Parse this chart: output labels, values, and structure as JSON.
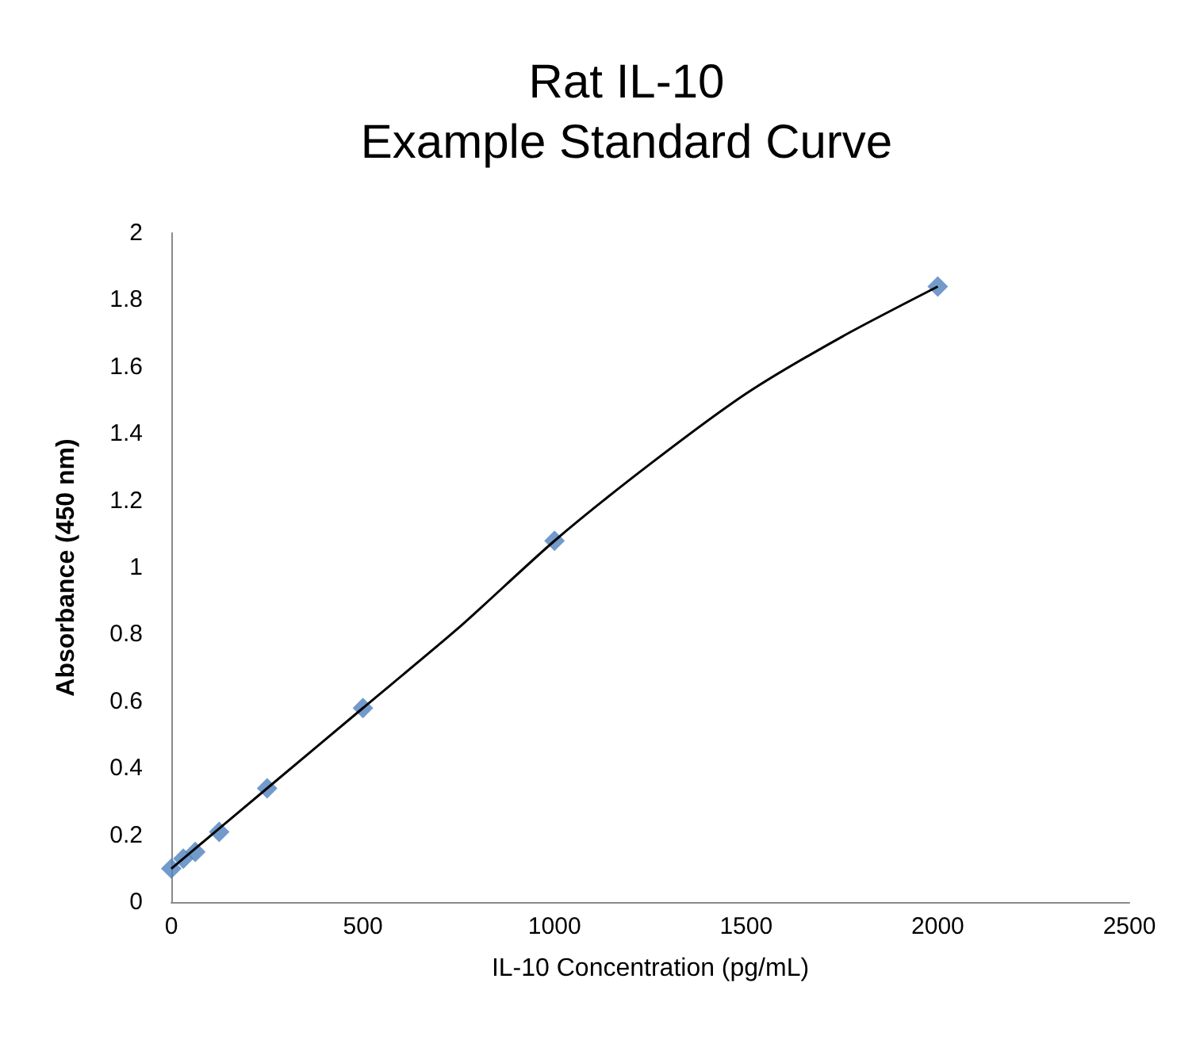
{
  "chart_data": {
    "type": "scatter",
    "title": "Rat IL-10\nExample Standard Curve",
    "xlabel": "IL-10 Concentration (pg/mL)",
    "ylabel": "Absorbance (450 nm)",
    "series": [
      {
        "color": "#4f81bd",
        "marker": "diamond",
        "x": [
          0,
          31.25,
          62.5,
          125,
          250,
          500,
          1000,
          2000
        ],
        "values": [
          0.1,
          0.13,
          0.15,
          0.21,
          0.34,
          0.58,
          1.08,
          1.84
        ]
      },
      {
        "type": "line",
        "color": "#000000",
        "marker": "none",
        "x": [
          0,
          250,
          500,
          750,
          1000,
          1250,
          1500,
          1750,
          2000
        ],
        "values": [
          0.1,
          0.34,
          0.58,
          0.82,
          1.08,
          1.31,
          1.52,
          1.69,
          1.84
        ]
      }
    ],
    "xlim": [
      0,
      2500
    ],
    "xticks": [
      0,
      500,
      1000,
      1500,
      2000,
      2500
    ],
    "ylim": [
      0,
      2
    ],
    "yticks": [
      0,
      0.2,
      0.4,
      0.6,
      0.8,
      1,
      1.2,
      1.4,
      1.6,
      1.8,
      2
    ],
    "grid": false
  }
}
